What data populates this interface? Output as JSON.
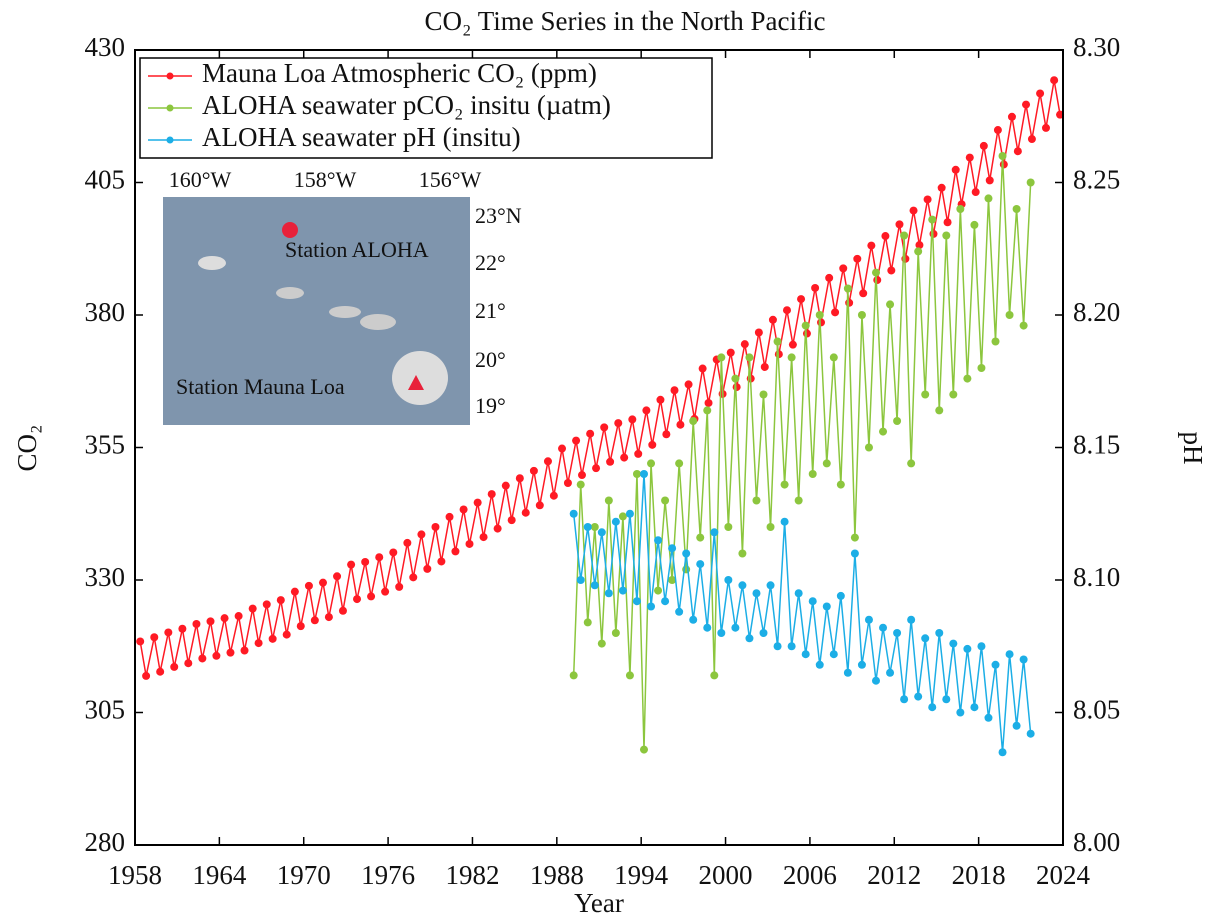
{
  "chart_data": {
    "type": "line",
    "title": "CO₂ Time Series in the North Pacific",
    "xlabel": "Year",
    "ylabel": "CO₂",
    "y2label": "pH",
    "xlim": [
      1958,
      2024
    ],
    "xticks": [
      1958,
      1964,
      1970,
      1976,
      1982,
      1988,
      1994,
      2000,
      2006,
      2012,
      2018,
      2024
    ],
    "ylim": [
      280,
      430
    ],
    "yticks": [
      280,
      305,
      330,
      355,
      380,
      405,
      430
    ],
    "y2lim": [
      8.0,
      8.3
    ],
    "y2ticks": [
      {
        "value": 8.0,
        "label": "8.00"
      },
      8.05,
      {
        "value": 8.1,
        "label": "8.10"
      },
      8.15,
      {
        "value": 8.2,
        "label": "8.20"
      },
      8.25,
      {
        "value": 8.3,
        "label": "8.30"
      }
    ],
    "legend": "upper left",
    "series": [
      {
        "name": "Mauna Loa Atmospheric CO₂ (ppm)",
        "color": "#ff1a24",
        "x": [
          1958.37,
          1958.79,
          1959.37,
          1959.79,
          1960.37,
          1960.79,
          1961.37,
          1961.79,
          1962.37,
          1962.79,
          1963.37,
          1963.79,
          1964.37,
          1964.79,
          1965.37,
          1965.79,
          1966.37,
          1966.79,
          1967.37,
          1967.79,
          1968.37,
          1968.79,
          1969.37,
          1969.79,
          1970.37,
          1970.79,
          1971.37,
          1971.79,
          1972.37,
          1972.79,
          1973.37,
          1973.79,
          1974.37,
          1974.79,
          1975.37,
          1975.79,
          1976.37,
          1976.79,
          1977.37,
          1977.79,
          1978.37,
          1978.79,
          1979.37,
          1979.79,
          1980.37,
          1980.79,
          1981.37,
          1981.79,
          1982.37,
          1982.79,
          1983.37,
          1983.79,
          1984.37,
          1984.79,
          1985.37,
          1985.79,
          1986.37,
          1986.79,
          1987.37,
          1987.79,
          1988.37,
          1988.79,
          1989.37,
          1989.79,
          1990.37,
          1990.79,
          1991.37,
          1991.79,
          1992.37,
          1992.79,
          1993.37,
          1993.79,
          1994.37,
          1994.79,
          1995.37,
          1995.79,
          1996.37,
          1996.79,
          1997.37,
          1997.79,
          1998.37,
          1998.79,
          1999.37,
          1999.79,
          2000.37,
          2000.79,
          2001.37,
          2001.79,
          2002.37,
          2002.79,
          2003.37,
          2003.79,
          2004.37,
          2004.79,
          2005.37,
          2005.79,
          2006.37,
          2006.79,
          2007.37,
          2007.79,
          2008.37,
          2008.79,
          2009.37,
          2009.79,
          2010.37,
          2010.79,
          2011.37,
          2011.79,
          2012.37,
          2012.79,
          2013.37,
          2013.79,
          2014.37,
          2014.79,
          2015.37,
          2015.79,
          2016.37,
          2016.79,
          2017.37,
          2017.79,
          2018.37,
          2018.79,
          2019.37,
          2019.79,
          2020.37,
          2020.79,
          2021.37,
          2021.79,
          2022.37,
          2022.79,
          2023.37,
          2023.79
        ],
        "values": [
          318.4,
          311.9,
          319.2,
          312.7,
          320.1,
          313.6,
          320.8,
          314.3,
          321.7,
          315.2,
          322.2,
          315.7,
          322.8,
          316.3,
          323.2,
          316.7,
          324.6,
          318.1,
          325.4,
          318.9,
          326.2,
          319.7,
          327.8,
          321.3,
          328.9,
          322.4,
          329.5,
          323.0,
          330.7,
          324.2,
          332.9,
          326.4,
          333.4,
          326.9,
          334.3,
          327.8,
          335.2,
          328.7,
          337.0,
          330.5,
          338.6,
          332.1,
          340.0,
          333.5,
          341.9,
          335.4,
          343.3,
          336.8,
          344.6,
          338.1,
          346.2,
          339.7,
          347.8,
          341.3,
          349.2,
          342.7,
          350.6,
          344.1,
          352.4,
          345.9,
          354.8,
          348.3,
          356.3,
          349.8,
          357.6,
          351.1,
          358.8,
          352.3,
          359.6,
          353.1,
          360.3,
          353.8,
          362.0,
          355.5,
          364.0,
          357.5,
          365.8,
          359.3,
          366.9,
          360.4,
          369.9,
          363.4,
          371.6,
          365.1,
          372.9,
          366.4,
          374.5,
          368.0,
          376.7,
          370.2,
          379.1,
          372.6,
          380.9,
          374.4,
          383.0,
          376.5,
          385.1,
          378.6,
          387.0,
          380.5,
          388.8,
          382.3,
          390.6,
          384.1,
          393.1,
          386.6,
          394.9,
          388.4,
          397.1,
          390.6,
          399.7,
          393.2,
          401.8,
          395.3,
          404.0,
          397.5,
          407.4,
          400.9,
          409.7,
          403.2,
          411.9,
          405.4,
          414.9,
          408.4,
          417.4,
          410.9,
          419.7,
          413.2,
          421.8,
          415.3,
          424.3,
          417.8
        ]
      },
      {
        "name": "ALOHA seawater pCO₂ insitu (µatm)",
        "color": "#8cc63e",
        "x": [
          1989.2,
          1989.7,
          1990.2,
          1990.7,
          1991.2,
          1991.7,
          1992.2,
          1992.7,
          1993.2,
          1993.7,
          1994.2,
          1994.7,
          1995.2,
          1995.7,
          1996.2,
          1996.7,
          1997.2,
          1997.7,
          1998.2,
          1998.7,
          1999.2,
          1999.7,
          2000.2,
          2000.7,
          2001.2,
          2001.7,
          2002.2,
          2002.7,
          2003.2,
          2003.7,
          2004.2,
          2004.7,
          2005.2,
          2005.7,
          2006.2,
          2006.7,
          2007.2,
          2007.7,
          2008.2,
          2008.7,
          2009.2,
          2009.7,
          2010.2,
          2010.7,
          2011.2,
          2011.7,
          2012.2,
          2012.7,
          2013.2,
          2013.7,
          2014.2,
          2014.7,
          2015.2,
          2015.7,
          2016.2,
          2016.7,
          2017.2,
          2017.7,
          2018.2,
          2018.7,
          2019.2,
          2019.7,
          2020.2,
          2020.7,
          2021.2,
          2021.7
        ],
        "values": [
          312,
          348,
          322,
          340,
          318,
          345,
          320,
          342,
          312,
          350,
          298,
          352,
          328,
          345,
          330,
          352,
          332,
          360,
          338,
          362,
          312,
          372,
          340,
          368,
          335,
          372,
          345,
          365,
          340,
          375,
          348,
          372,
          345,
          378,
          350,
          380,
          352,
          372,
          348,
          385,
          338,
          380,
          355,
          388,
          358,
          382,
          360,
          395,
          352,
          392,
          365,
          398,
          362,
          395,
          365,
          400,
          368,
          397,
          370,
          402,
          375,
          410,
          380,
          400,
          378,
          405
        ]
      },
      {
        "name": "ALOHA seawater pH (insitu)",
        "color": "#1caee6",
        "axis": "y2",
        "x": [
          1989.2,
          1989.7,
          1990.2,
          1990.7,
          1991.2,
          1991.7,
          1992.2,
          1992.7,
          1993.2,
          1993.7,
          1994.2,
          1994.7,
          1995.2,
          1995.7,
          1996.2,
          1996.7,
          1997.2,
          1997.7,
          1998.2,
          1998.7,
          1999.2,
          1999.7,
          2000.2,
          2000.7,
          2001.2,
          2001.7,
          2002.2,
          2002.7,
          2003.2,
          2003.7,
          2004.2,
          2004.7,
          2005.2,
          2005.7,
          2006.2,
          2006.7,
          2007.2,
          2007.7,
          2008.2,
          2008.7,
          2009.2,
          2009.7,
          2010.2,
          2010.7,
          2011.2,
          2011.7,
          2012.2,
          2012.7,
          2013.2,
          2013.7,
          2014.2,
          2014.7,
          2015.2,
          2015.7,
          2016.2,
          2016.7,
          2017.2,
          2017.7,
          2018.2,
          2018.7,
          2019.2,
          2019.7,
          2020.2,
          2020.7,
          2021.2,
          2021.7
        ],
        "values": [
          8.125,
          8.1,
          8.12,
          8.098,
          8.118,
          8.095,
          8.122,
          8.096,
          8.125,
          8.092,
          8.14,
          8.09,
          8.115,
          8.092,
          8.112,
          8.088,
          8.11,
          8.085,
          8.106,
          8.082,
          8.118,
          8.08,
          8.1,
          8.082,
          8.098,
          8.078,
          8.095,
          8.08,
          8.098,
          8.075,
          8.122,
          8.075,
          8.095,
          8.072,
          8.092,
          8.068,
          8.09,
          8.072,
          8.094,
          8.065,
          8.11,
          8.068,
          8.085,
          8.062,
          8.082,
          8.065,
          8.08,
          8.055,
          8.085,
          8.056,
          8.078,
          8.052,
          8.08,
          8.055,
          8.076,
          8.05,
          8.074,
          8.052,
          8.075,
          8.048,
          8.068,
          8.035,
          8.072,
          8.045,
          8.07,
          8.042
        ]
      }
    ],
    "inset_map": {
      "longitude_labels": [
        "160°W",
        "158°W",
        "156°W"
      ],
      "latitude_labels": [
        "23°N",
        "22°",
        "21°",
        "20°",
        "19°"
      ],
      "stations": [
        "Station ALOHA",
        "Station Mauna Loa"
      ]
    }
  }
}
